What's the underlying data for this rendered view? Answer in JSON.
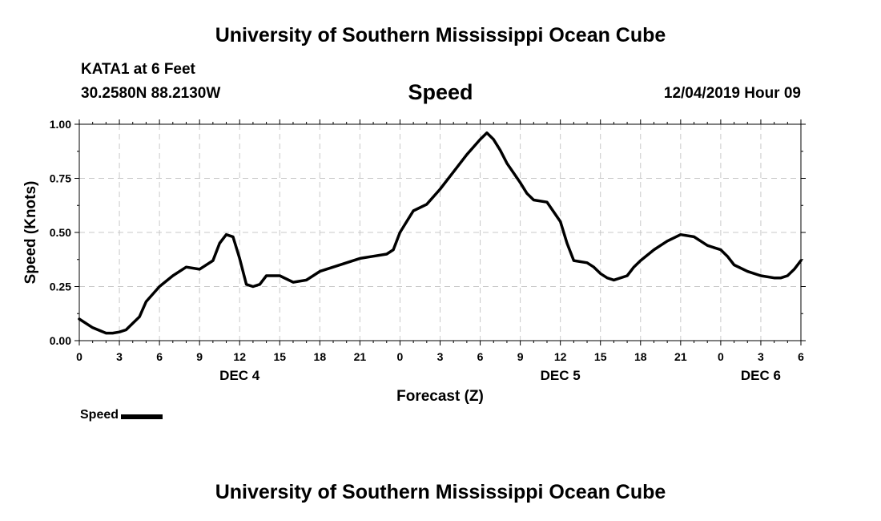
{
  "header": {
    "title": "University of Southern Mississippi Ocean Cube",
    "station": "KATA1 at 6 Feet",
    "coords": "30.2580N 88.2130W",
    "variable": "Speed",
    "datetime": "12/04/2019 Hour 09"
  },
  "footer": {
    "title": "University of Southern Mississippi Ocean Cube"
  },
  "legend": {
    "label": "Speed",
    "color": "#000000"
  },
  "chart_data": {
    "type": "line",
    "title": "Speed",
    "xlabel": "Forecast (Z)",
    "ylabel": "Speed (Knots)",
    "xlim": [
      0,
      54
    ],
    "ylim": [
      0,
      1
    ],
    "grid": true,
    "legend_position": "bottom-left",
    "y_ticks": [
      "0.00",
      "0.25",
      "0.50",
      "0.75",
      "1.00"
    ],
    "x_ticks": [
      "0",
      "3",
      "6",
      "9",
      "12",
      "15",
      "18",
      "21",
      "0",
      "3",
      "6",
      "9",
      "12",
      "15",
      "18",
      "21",
      "0",
      "3",
      "6"
    ],
    "day_labels": [
      {
        "label": "DEC 4",
        "hour": 12
      },
      {
        "label": "DEC 5",
        "hour": 36
      },
      {
        "label": "DEC 6",
        "hour": 51
      }
    ],
    "series": [
      {
        "name": "Speed",
        "x": [
          0,
          1,
          2,
          2.5,
          3,
          3.5,
          4,
          4.5,
          5,
          6,
          7,
          8,
          9,
          10,
          10.5,
          11,
          11.5,
          12,
          12.5,
          13,
          13.5,
          14,
          15,
          16,
          17,
          17.5,
          18,
          19,
          20,
          21,
          22,
          23,
          23.5,
          24,
          25,
          26,
          27,
          28,
          29,
          30,
          30.5,
          31,
          31.5,
          32,
          33,
          33.5,
          34,
          35,
          36,
          36.5,
          37,
          38,
          38.5,
          39,
          39.5,
          40,
          41,
          41.5,
          42,
          43,
          43.5,
          44,
          45,
          46,
          46.5,
          47,
          47.5,
          48,
          48.5,
          49,
          50,
          51,
          52,
          52.5,
          53,
          53.5,
          54
        ],
        "y": [
          0.1,
          0.06,
          0.035,
          0.035,
          0.04,
          0.05,
          0.08,
          0.11,
          0.18,
          0.25,
          0.3,
          0.34,
          0.33,
          0.37,
          0.45,
          0.49,
          0.48,
          0.38,
          0.26,
          0.25,
          0.26,
          0.3,
          0.3,
          0.27,
          0.28,
          0.3,
          0.32,
          0.34,
          0.36,
          0.38,
          0.39,
          0.4,
          0.42,
          0.5,
          0.6,
          0.63,
          0.7,
          0.78,
          0.86,
          0.93,
          0.96,
          0.93,
          0.88,
          0.82,
          0.73,
          0.68,
          0.65,
          0.64,
          0.55,
          0.45,
          0.37,
          0.36,
          0.34,
          0.31,
          0.29,
          0.28,
          0.3,
          0.34,
          0.37,
          0.42,
          0.44,
          0.46,
          0.49,
          0.48,
          0.46,
          0.44,
          0.43,
          0.42,
          0.39,
          0.35,
          0.32,
          0.3,
          0.29,
          0.29,
          0.3,
          0.33,
          0.37
        ]
      }
    ]
  }
}
